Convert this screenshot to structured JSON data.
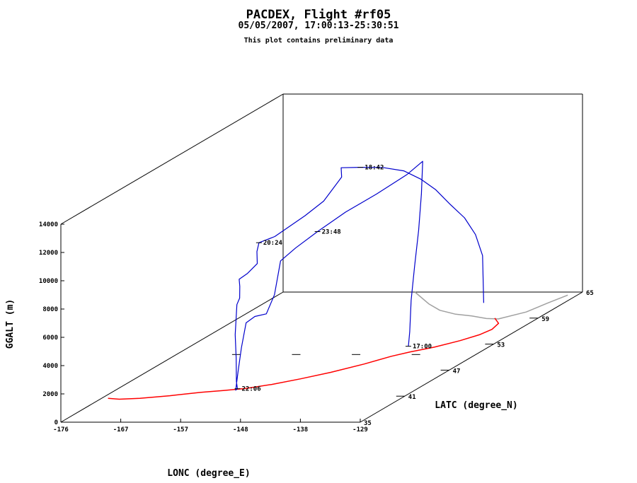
{
  "chart_data": {
    "type": "line",
    "projection": "3d",
    "title": "PACDEX, Flight #rf05",
    "subtitle": "05/05/2007, 17:00:13-25:30:51",
    "note": "This plot contains preliminary data",
    "xlabel": "LONC (degree_E)",
    "ylabel": "LATC (degree_N)",
    "zlabel": "GGALT (m)",
    "xlim": [
      -176,
      -129
    ],
    "ylim": [
      35,
      65
    ],
    "zlim": [
      0,
      14000
    ],
    "x_ticks": [
      "-176",
      "-167",
      "-157",
      "-148",
      "-138",
      "-129"
    ],
    "y_ticks": [
      "35",
      "41",
      "47",
      "53",
      "59",
      "65"
    ],
    "z_ticks": [
      "0",
      "2000",
      "4000",
      "6000",
      "8000",
      "10000",
      "12000",
      "14000"
    ],
    "series": [
      {
        "role": "flight track (3D)",
        "color": "#0000cc",
        "points": [
          [
            -141.6,
            62.5,
            0
          ],
          [
            -141.2,
            62.0,
            3500
          ],
          [
            -141.5,
            61.3,
            5200
          ],
          [
            -142.4,
            60.6,
            6600
          ],
          [
            -143.6,
            59.6,
            7900
          ],
          [
            -144.6,
            58.6,
            9200
          ],
          [
            -145.5,
            57.4,
            10300
          ],
          [
            -146.7,
            56.1,
            11300
          ],
          [
            -148.3,
            54.6,
            12000
          ],
          [
            -149.9,
            53.0,
            12500
          ],
          [
            -151.3,
            51.6,
            12900
          ],
          [
            -151.0,
            51.4,
            12300
          ],
          [
            -152.3,
            50.1,
            11000
          ],
          [
            -153.6,
            48.7,
            10400
          ],
          [
            -155.8,
            46.5,
            9600
          ],
          [
            -157.0,
            45.4,
            9500
          ],
          [
            -157.2,
            45.3,
            8900
          ],
          [
            -156.8,
            45.0,
            8150
          ],
          [
            -157.4,
            44.2,
            7700
          ],
          [
            -157.9,
            43.5,
            7500
          ],
          [
            -157.8,
            43.5,
            7000
          ],
          [
            -157.7,
            43.4,
            6200
          ],
          [
            -157.9,
            43.2,
            5800
          ],
          [
            -158.0,
            43.2,
            5000
          ],
          [
            -157.7,
            42.8,
            3800
          ],
          [
            -157.2,
            42.5,
            2200
          ],
          [
            -156.7,
            42.1,
            700
          ],
          [
            -156.3,
            41.9,
            250
          ],
          [
            -156.0,
            41.4,
            300
          ],
          [
            -155.6,
            41.4,
            1700
          ],
          [
            -155.1,
            41.4,
            3300
          ],
          [
            -154.6,
            41.6,
            5000
          ],
          [
            -153.8,
            42.1,
            5300
          ],
          [
            -152.7,
            42.7,
            5300
          ],
          [
            -152.0,
            43.2,
            6500
          ],
          [
            -151.4,
            43.5,
            8800
          ],
          [
            -150.2,
            44.5,
            9400
          ],
          [
            -148.5,
            46.0,
            10100
          ],
          [
            -146.3,
            47.9,
            10900
          ],
          [
            -144.0,
            50.1,
            11500
          ],
          [
            -141.8,
            52.3,
            12200
          ],
          [
            -140.6,
            53.4,
            12800
          ],
          [
            -140.8,
            53.4,
            10500
          ],
          [
            -141.0,
            53.2,
            8000
          ],
          [
            -141.3,
            52.9,
            5500
          ],
          [
            -141.6,
            52.7,
            3200
          ],
          [
            -141.7,
            52.6,
            1000
          ],
          [
            -141.8,
            52.5,
            0
          ]
        ],
        "time_labels": [
          {
            "text": "18:42",
            "at": [
              -149.9,
              53.0,
              12500
            ]
          },
          {
            "text": "20:24",
            "at": [
              -157.0,
              45.4,
              9500
            ]
          },
          {
            "text": "22:06",
            "at": [
              -156.3,
              41.9,
              250
            ]
          },
          {
            "text": "23:48",
            "at": [
              -148.5,
              46.0,
              10100
            ]
          },
          {
            "text": "17:00",
            "at": [
              -141.8,
              52.5,
              0
            ]
          }
        ]
      },
      {
        "role": "ground track projection",
        "color": "#ff0000",
        "points": [
          [
            -175.0,
            40.5,
            0
          ],
          [
            -173.0,
            40.3,
            0
          ],
          [
            -170.0,
            40.5,
            0
          ],
          [
            -166.0,
            41.1,
            0
          ],
          [
            -162.0,
            41.9,
            0
          ],
          [
            -159.0,
            42.3,
            0
          ],
          [
            -156.0,
            42.8,
            0
          ],
          [
            -153.0,
            43.7,
            0
          ],
          [
            -150.0,
            45.0,
            0
          ],
          [
            -147.0,
            46.5,
            0
          ],
          [
            -144.0,
            48.4,
            0
          ],
          [
            -141.8,
            50.2,
            0
          ],
          [
            -140.0,
            51.2,
            0
          ],
          [
            -137.5,
            52.3,
            0
          ],
          [
            -135.2,
            53.8,
            0
          ],
          [
            -133.7,
            55.2,
            0
          ],
          [
            -133.2,
            56.4,
            0
          ],
          [
            -133.8,
            57.8,
            0
          ],
          [
            -135.8,
            59.0,
            0
          ]
        ]
      },
      {
        "role": "coastline",
        "color": "#a0a0a0",
        "points": [
          [
            -155.3,
            65.0,
            0
          ],
          [
            -150.0,
            62.3,
            0
          ],
          [
            -146.5,
            60.8,
            0
          ],
          [
            -143.0,
            59.9,
            0
          ],
          [
            -140.0,
            59.5,
            0
          ],
          [
            -137.0,
            58.9,
            0
          ],
          [
            -135.0,
            58.8,
            0
          ],
          [
            -132.5,
            60.4,
            0
          ],
          [
            -131.5,
            62.5,
            0
          ],
          [
            -130.5,
            64.3,
            0
          ]
        ]
      }
    ]
  }
}
